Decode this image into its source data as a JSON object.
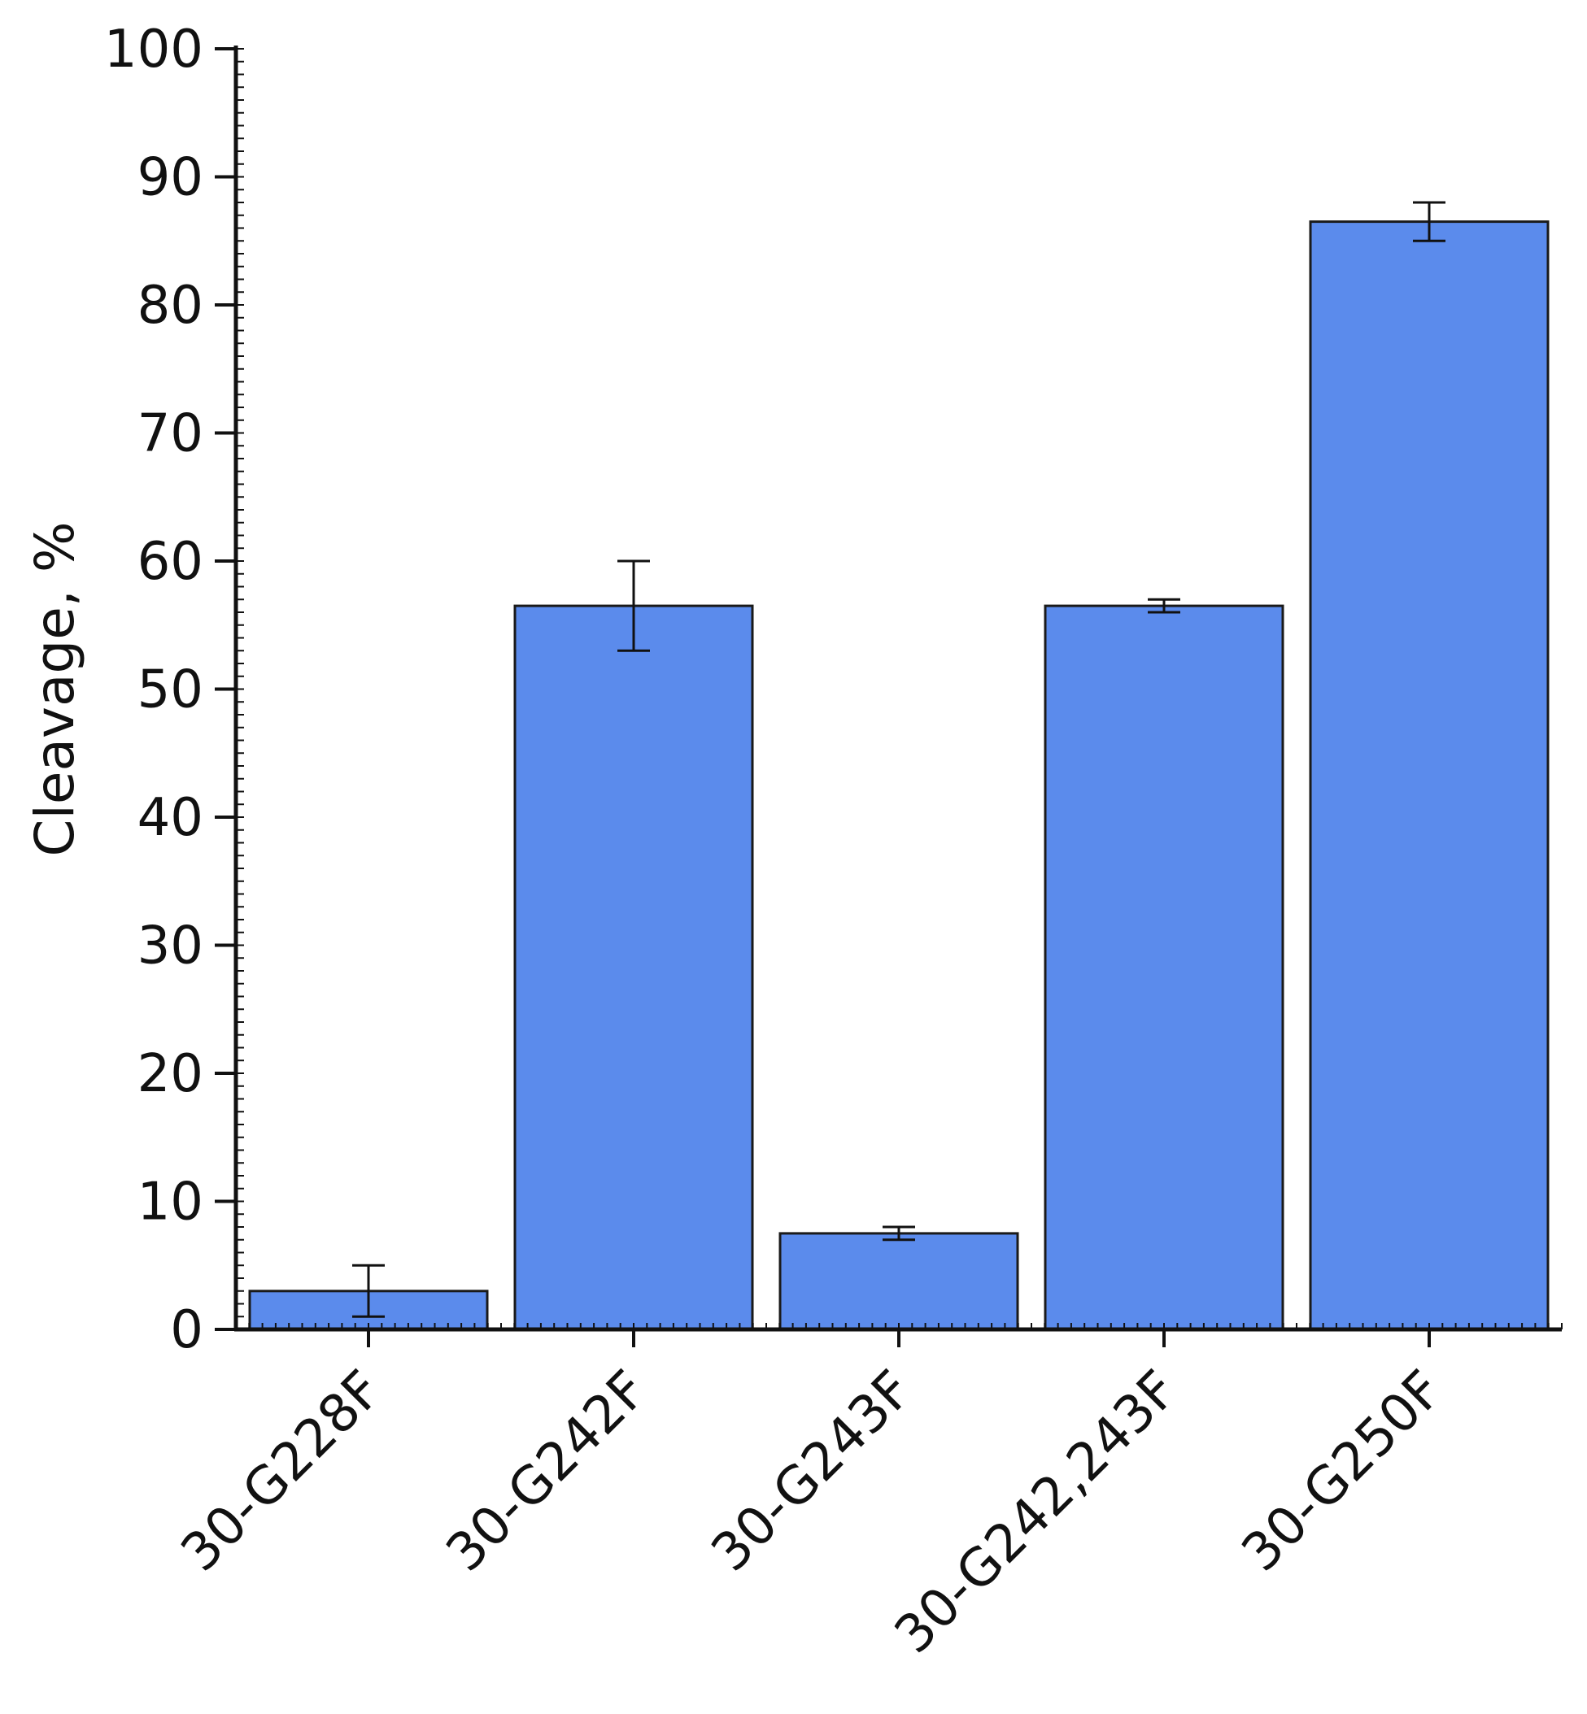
{
  "chart_data": {
    "type": "bar",
    "categories": [
      "30-G228F",
      "30-G242F",
      "30-G243F",
      "30-G242,243F",
      "30-G250F"
    ],
    "values": [
      3,
      56.5,
      7.5,
      56.5,
      86.5
    ],
    "error": [
      2.0,
      3.5,
      0.5,
      0.5,
      1.5
    ],
    "ylabel": "Cleavage, %",
    "xlabel": "",
    "ylim": [
      0,
      100
    ],
    "yticks": [
      0,
      10,
      20,
      30,
      40,
      50,
      60,
      70,
      80,
      90,
      100
    ],
    "yticks_minor_step": 1,
    "grid": false,
    "legend": "none",
    "colors": {
      "bar_fill": "#5b8bec",
      "bar_stroke": "#1a1a1a",
      "axis": "#111111",
      "error_bar": "#111111"
    }
  }
}
